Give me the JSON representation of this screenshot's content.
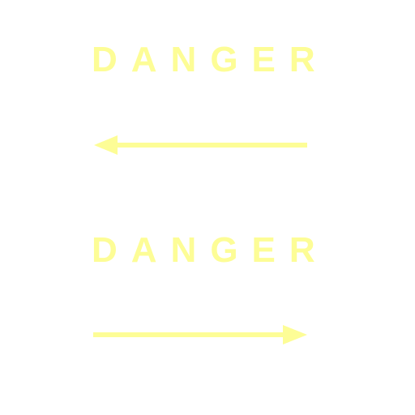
{
  "panels": [
    {
      "label": "DANGER",
      "arrow": "left-arrow-icon"
    },
    {
      "label": "DANGER",
      "arrow": "right-arrow-icon"
    }
  ],
  "colors": {
    "background": "#ffffff",
    "sign_yellow": "#fdfd96"
  }
}
